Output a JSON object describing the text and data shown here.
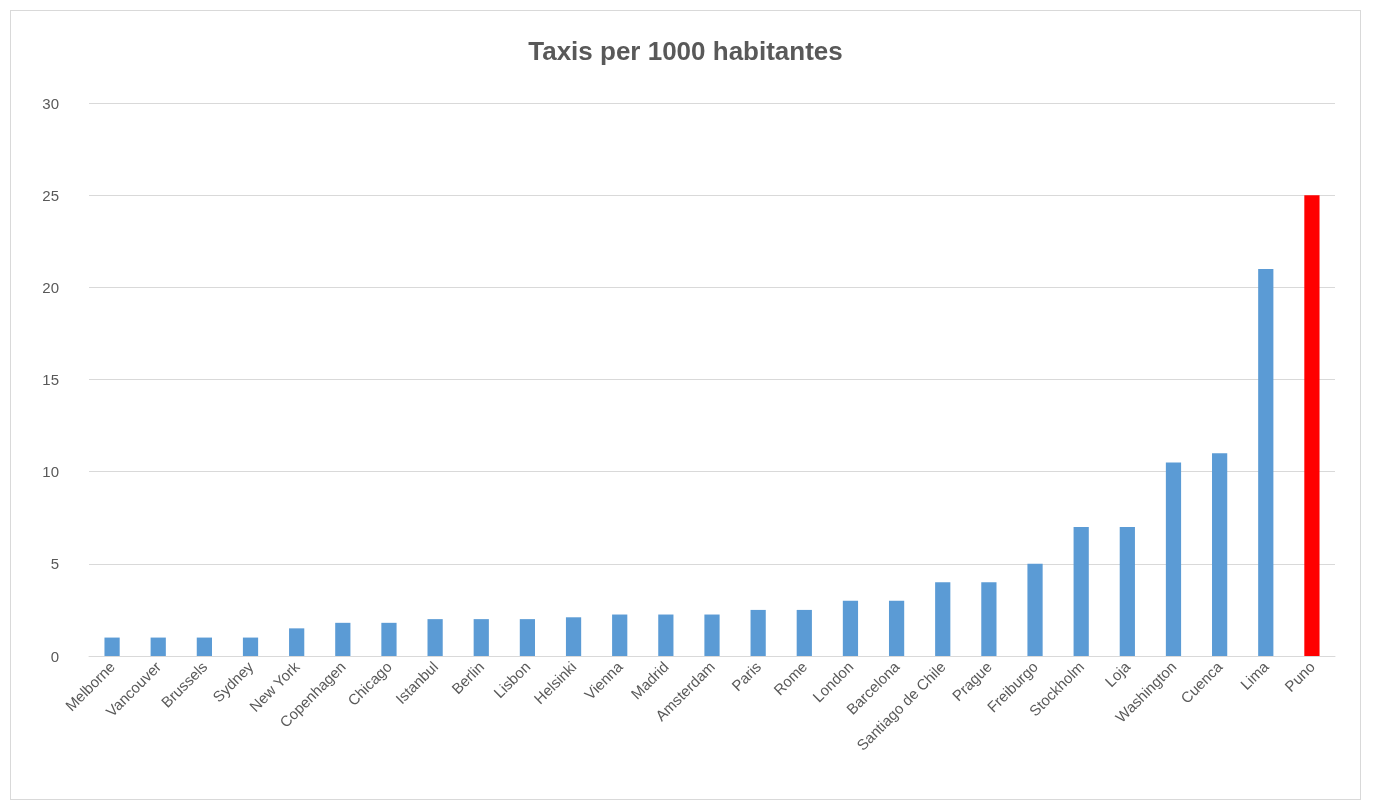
{
  "chart_data": {
    "type": "bar",
    "title": "Taxis per 1000 habitantes",
    "categories": [
      "Melborne",
      "Vancouver",
      "Brussels",
      "Sydney",
      "New York",
      "Copenhagen",
      "Chicago",
      "Istanbul",
      "Berlin",
      "Lisbon",
      "Helsinki",
      "Vienna",
      "Madrid",
      "Amsterdam",
      "Paris",
      "Rome",
      "London",
      "Barcelona",
      "Santiago de Chile",
      "Prague",
      "Freiburgo",
      "Stockholm",
      "Loja",
      "Washington",
      "Cuenca",
      "Lima",
      "Puno"
    ],
    "values": [
      1,
      1,
      1,
      1,
      1.5,
      1.8,
      1.8,
      2,
      2,
      2,
      2.1,
      2.25,
      2.25,
      2.25,
      2.5,
      2.5,
      3,
      3,
      4,
      4,
      5,
      7,
      7,
      10.5,
      11,
      21,
      25
    ],
    "colors": [
      "#5b9bd5",
      "#5b9bd5",
      "#5b9bd5",
      "#5b9bd5",
      "#5b9bd5",
      "#5b9bd5",
      "#5b9bd5",
      "#5b9bd5",
      "#5b9bd5",
      "#5b9bd5",
      "#5b9bd5",
      "#5b9bd5",
      "#5b9bd5",
      "#5b9bd5",
      "#5b9bd5",
      "#5b9bd5",
      "#5b9bd5",
      "#5b9bd5",
      "#5b9bd5",
      "#5b9bd5",
      "#5b9bd5",
      "#5b9bd5",
      "#5b9bd5",
      "#5b9bd5",
      "#5b9bd5",
      "#5b9bd5",
      "#ff0000"
    ],
    "ylim": [
      0,
      30
    ],
    "yticks": [
      0,
      5,
      10,
      15,
      20,
      25,
      30
    ],
    "grid": "y"
  }
}
